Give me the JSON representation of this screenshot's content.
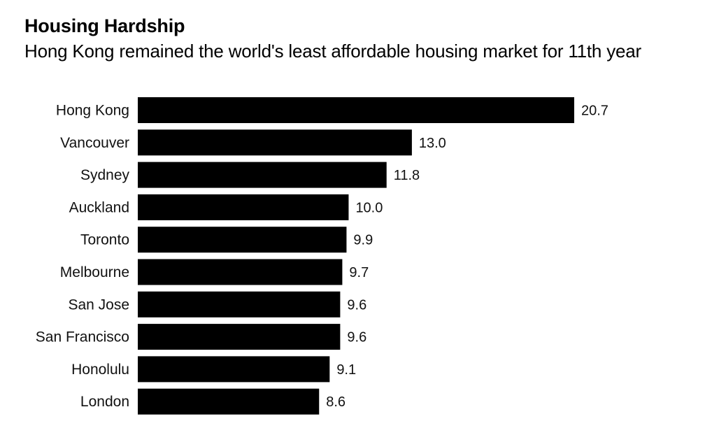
{
  "chart_data": {
    "type": "bar",
    "orientation": "horizontal",
    "title": "Housing Hardship",
    "subtitle": "Hong Kong remained the world's least affordable housing market for 11th year",
    "categories": [
      "Hong Kong",
      "Vancouver",
      "Sydney",
      "Auckland",
      "Toronto",
      "Melbourne",
      "San Jose",
      "San Francisco",
      "Honolulu",
      "London"
    ],
    "values": [
      20.7,
      13.0,
      11.8,
      10.0,
      9.9,
      9.7,
      9.6,
      9.6,
      9.1,
      8.6
    ],
    "value_labels": [
      "20.7",
      "13.0",
      "11.8",
      "10.0",
      "9.9",
      "9.7",
      "9.6",
      "9.6",
      "9.1",
      "8.6"
    ],
    "xlim": [
      0,
      20.7
    ],
    "grid": false,
    "bar_color": "#000000"
  }
}
